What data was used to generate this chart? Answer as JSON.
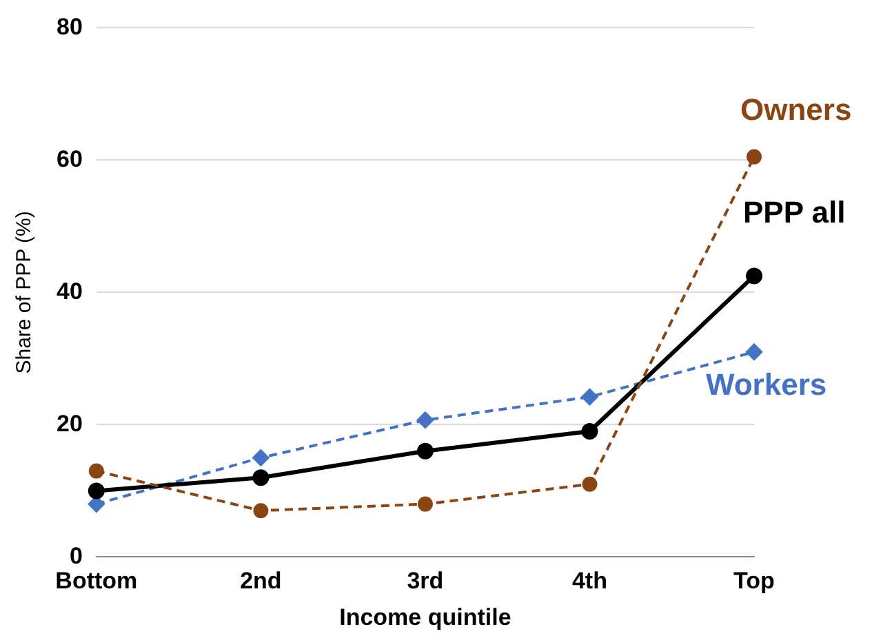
{
  "chart_data": {
    "type": "line",
    "xlabel": "Income quintile",
    "ylabel": "Share of PPP (%)",
    "categories": [
      "Bottom",
      "2nd",
      "3rd",
      "4th",
      "Top"
    ],
    "series": [
      {
        "name": "Owners",
        "color": "#8b4513",
        "values": [
          13,
          7,
          8,
          11,
          60.5
        ],
        "marker": "circle",
        "line_style": "dashed"
      },
      {
        "name": "PPP all",
        "color": "#000000",
        "values": [
          10,
          12,
          16,
          19,
          42.5
        ],
        "marker": "circle",
        "line_style": "solid"
      },
      {
        "name": "Workers",
        "color": "#4472c4",
        "values": [
          8,
          15,
          20.7,
          24.2,
          31
        ],
        "marker": "diamond",
        "line_style": "dashed"
      }
    ],
    "ylim": [
      0,
      80
    ],
    "yticks": [
      0,
      20,
      40,
      60,
      80
    ],
    "grid": "y",
    "legend": false
  }
}
